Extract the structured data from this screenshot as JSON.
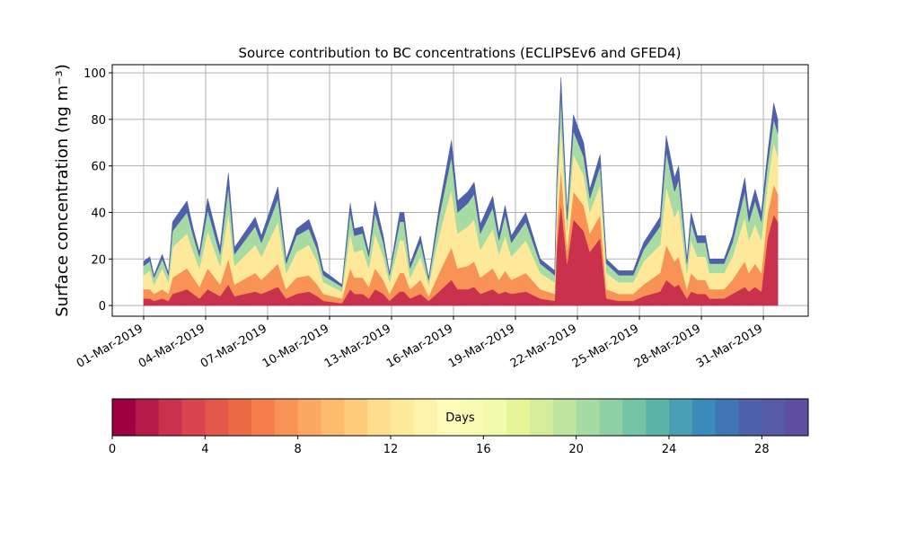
{
  "chart_data": {
    "type": "stacked_area",
    "title": "Source contribution to BC concentrations (ECLIPSEv6 and GFED4)",
    "y_label": "Surface concentration (ng m⁻³)",
    "x": [
      0,
      0.3,
      0.5,
      0.9,
      1.2,
      1.4,
      2.1,
      2.4,
      2.7,
      3.1,
      3.7,
      4.1,
      4.4,
      5.4,
      5.7,
      6.5,
      6.9,
      7.4,
      8.0,
      8.4,
      8.7,
      9.6,
      10.0,
      10.2,
      10.6,
      10.9,
      11.2,
      11.6,
      11.9,
      12.4,
      12.6,
      12.9,
      13.4,
      13.8,
      14.3,
      14.9,
      15.2,
      15.7,
      16.0,
      16.3,
      16.9,
      17.2,
      17.5,
      17.8,
      18.5,
      19.2,
      19.9,
      20.0,
      20.2,
      20.5,
      20.8,
      21.3,
      21.6,
      22.1,
      22.4,
      23.0,
      23.7,
      24.2,
      25.0,
      25.3,
      25.7,
      25.9,
      26.3,
      26.5,
      26.8,
      27.2,
      27.4,
      28.1,
      28.5,
      29.1,
      29.3,
      29.6,
      29.9,
      30.2,
      30.5,
      30.7
    ],
    "series": [
      {
        "color": "#c9314c",
        "values": [
          3,
          3,
          2,
          3,
          2,
          5,
          7,
          5,
          3,
          7,
          4,
          9,
          4,
          6,
          5,
          8,
          3,
          5,
          6,
          4,
          2,
          1,
          7,
          5,
          5,
          3,
          7,
          5,
          2,
          6,
          6,
          3,
          5,
          2,
          6,
          11,
          7,
          7,
          8,
          5,
          7,
          5,
          6,
          5,
          6,
          3,
          2,
          25,
          44,
          18,
          37,
          32,
          23,
          29,
          3,
          2,
          2,
          4,
          6,
          11,
          8,
          9,
          3,
          6,
          5,
          5,
          3,
          3,
          5,
          8,
          6,
          8,
          6,
          29,
          39,
          36
        ]
      },
      {
        "color": "#f99255",
        "values": [
          4,
          4,
          3,
          4,
          3,
          7,
          9,
          7,
          5,
          9,
          5,
          11,
          5,
          8,
          6,
          10,
          4,
          7,
          7,
          5,
          3,
          2,
          9,
          7,
          7,
          5,
          9,
          6,
          3,
          8,
          8,
          4,
          6,
          2,
          8,
          14,
          9,
          10,
          11,
          7,
          9,
          6,
          9,
          6,
          8,
          4,
          3,
          8,
          15,
          6,
          12,
          11,
          8,
          10,
          4,
          3,
          3,
          5,
          8,
          15,
          11,
          12,
          4,
          8,
          6,
          6,
          4,
          4,
          6,
          11,
          8,
          10,
          8,
          10,
          13,
          12
        ]
      },
      {
        "color": "#fee99b",
        "values": [
          6,
          8,
          4,
          9,
          5,
          13,
          15,
          11,
          8,
          16,
          8,
          20,
          8,
          12,
          10,
          18,
          7,
          11,
          13,
          10,
          5,
          3,
          15,
          11,
          12,
          8,
          15,
          10,
          5,
          14,
          14,
          5,
          10,
          5,
          16,
          25,
          15,
          17,
          18,
          12,
          17,
          11,
          15,
          10,
          14,
          7,
          5,
          11,
          19,
          8,
          16,
          13,
          9,
          13,
          7,
          5,
          5,
          10,
          12,
          25,
          19,
          21,
          7,
          14,
          10,
          10,
          7,
          7,
          10,
          19,
          14,
          17,
          14,
          13,
          18,
          16
        ]
      },
      {
        "color": "#a6dba4",
        "values": [
          4,
          4,
          3,
          4,
          3,
          7,
          9,
          7,
          5,
          9,
          5,
          11,
          5,
          8,
          6,
          10,
          4,
          7,
          7,
          5,
          3,
          2,
          9,
          7,
          7,
          5,
          9,
          6,
          3,
          8,
          8,
          4,
          6,
          2,
          8,
          14,
          9,
          10,
          11,
          7,
          9,
          6,
          9,
          6,
          8,
          4,
          3,
          7,
          12,
          5,
          10,
          8,
          6,
          8,
          4,
          3,
          3,
          5,
          8,
          15,
          11,
          12,
          4,
          8,
          6,
          6,
          4,
          4,
          6,
          11,
          8,
          10,
          8,
          8,
          10,
          10
        ]
      },
      {
        "color": "#4e60aa",
        "values": [
          2,
          2,
          1,
          2,
          1,
          4,
          5,
          3,
          2,
          5,
          3,
          6,
          3,
          4,
          3,
          5,
          2,
          3,
          4,
          3,
          2,
          1,
          4,
          3,
          3,
          2,
          5,
          3,
          1,
          4,
          4,
          2,
          3,
          1,
          4,
          7,
          5,
          5,
          5,
          4,
          5,
          3,
          4,
          3,
          4,
          2,
          2,
          4,
          8,
          3,
          7,
          6,
          4,
          5,
          2,
          2,
          2,
          3,
          4,
          7,
          6,
          6,
          2,
          4,
          3,
          3,
          2,
          2,
          3,
          6,
          4,
          5,
          4,
          5,
          7,
          6
        ]
      }
    ],
    "xlim": [
      -1.52,
      32.17
    ],
    "xticks": [
      {
        "value": 0,
        "label": "01-Mar-2019"
      },
      {
        "value": 3,
        "label": "04-Mar-2019"
      },
      {
        "value": 6,
        "label": "07-Mar-2019"
      },
      {
        "value": 9,
        "label": "10-Mar-2019"
      },
      {
        "value": 12,
        "label": "13-Mar-2019"
      },
      {
        "value": 15,
        "label": "16-Mar-2019"
      },
      {
        "value": 18,
        "label": "19-Mar-2019"
      },
      {
        "value": 21,
        "label": "22-Mar-2019"
      },
      {
        "value": 24,
        "label": "25-Mar-2019"
      },
      {
        "value": 27,
        "label": "28-Mar-2019"
      },
      {
        "value": 30,
        "label": "31-Mar-2019"
      }
    ],
    "ylim": [
      -4.6,
      103.5
    ],
    "yticks": [
      0,
      20,
      40,
      60,
      80,
      100
    ],
    "grid": true,
    "colorbar": {
      "label": "Days",
      "lim": [
        0,
        30
      ],
      "ticks": [
        0,
        4,
        8,
        12,
        16,
        20,
        24,
        28
      ],
      "colors": [
        "#9e0142",
        "#b41947",
        "#c9314c",
        "#d9444e",
        "#e4584b",
        "#ee6a46",
        "#f57d4a",
        "#f99255",
        "#fca762",
        "#fdbb6e",
        "#fecd7c",
        "#fedd8d",
        "#fee99b",
        "#fff3ab",
        "#fffbb8",
        "#f7fcb4",
        "#f2faac",
        "#e6f598",
        "#d3ed9c",
        "#bee5a0",
        "#a6dba4",
        "#8ed0a4",
        "#74c5a5",
        "#5db5a9",
        "#4aa0b3",
        "#3a8bbb",
        "#3f75b3",
        "#4e60aa",
        "#575aa6",
        "#5e4fa2"
      ]
    }
  }
}
